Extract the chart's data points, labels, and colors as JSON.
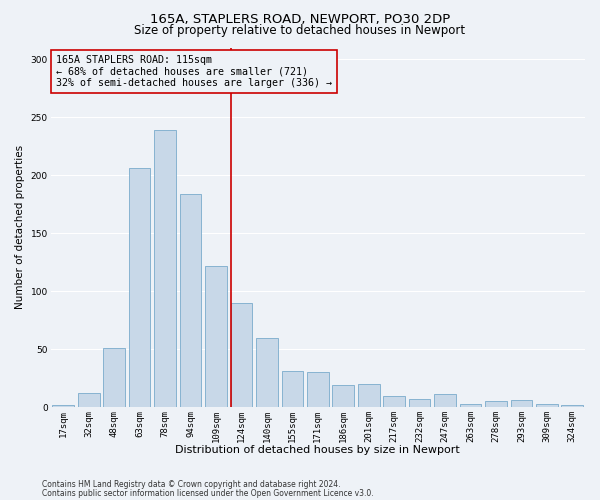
{
  "title1": "165A, STAPLERS ROAD, NEWPORT, PO30 2DP",
  "title2": "Size of property relative to detached houses in Newport",
  "xlabel": "Distribution of detached houses by size in Newport",
  "ylabel": "Number of detached properties",
  "annotation_line1": "165A STAPLERS ROAD: 115sqm",
  "annotation_line2": "← 68% of detached houses are smaller (721)",
  "annotation_line3": "32% of semi-detached houses are larger (336) →",
  "footer1": "Contains HM Land Registry data © Crown copyright and database right 2024.",
  "footer2": "Contains public sector information licensed under the Open Government Licence v3.0.",
  "bin_labels": [
    "17sqm",
    "32sqm",
    "48sqm",
    "63sqm",
    "78sqm",
    "94sqm",
    "109sqm",
    "124sqm",
    "140sqm",
    "155sqm",
    "171sqm",
    "186sqm",
    "201sqm",
    "217sqm",
    "232sqm",
    "247sqm",
    "263sqm",
    "278sqm",
    "293sqm",
    "309sqm",
    "324sqm"
  ],
  "bar_values": [
    2,
    12,
    51,
    206,
    239,
    184,
    122,
    90,
    60,
    31,
    30,
    19,
    20,
    10,
    7,
    11,
    3,
    5,
    6,
    3,
    2
  ],
  "bar_color": "#c8d8e8",
  "bar_edgecolor": "#7aabcc",
  "red_line_index": 7,
  "red_line_color": "#cc0000",
  "annotation_box_edgecolor": "#cc0000",
  "ylim": [
    0,
    310
  ],
  "yticks": [
    0,
    50,
    100,
    150,
    200,
    250,
    300
  ],
  "bg_color": "#eef2f7",
  "grid_color": "#ffffff",
  "title1_fontsize": 9.5,
  "title2_fontsize": 8.5,
  "xlabel_fontsize": 8,
  "ylabel_fontsize": 7.5,
  "annotation_fontsize": 7.2,
  "tick_fontsize": 6.5,
  "footer_fontsize": 5.5
}
